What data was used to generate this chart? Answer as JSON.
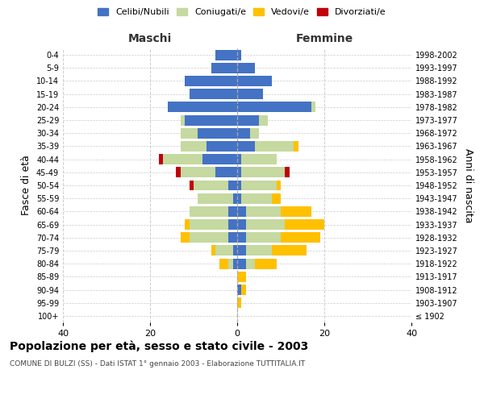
{
  "age_groups": [
    "100+",
    "95-99",
    "90-94",
    "85-89",
    "80-84",
    "75-79",
    "70-74",
    "65-69",
    "60-64",
    "55-59",
    "50-54",
    "45-49",
    "40-44",
    "35-39",
    "30-34",
    "25-29",
    "20-24",
    "15-19",
    "10-14",
    "5-9",
    "0-4"
  ],
  "birth_years": [
    "≤ 1902",
    "1903-1907",
    "1908-1912",
    "1913-1917",
    "1918-1922",
    "1923-1927",
    "1928-1932",
    "1933-1937",
    "1938-1942",
    "1943-1947",
    "1948-1952",
    "1953-1957",
    "1958-1962",
    "1963-1967",
    "1968-1972",
    "1973-1977",
    "1978-1982",
    "1983-1987",
    "1988-1992",
    "1993-1997",
    "1998-2002"
  ],
  "colors": {
    "celibi": "#4472c4",
    "coniugati": "#c5d9a0",
    "vedovi": "#ffc000",
    "divorziati": "#c0000b"
  },
  "maschi": {
    "celibi": [
      0,
      0,
      0,
      0,
      1,
      1,
      2,
      2,
      2,
      1,
      2,
      5,
      8,
      7,
      9,
      12,
      16,
      11,
      12,
      6,
      5
    ],
    "coniugati": [
      0,
      0,
      0,
      0,
      1,
      4,
      9,
      9,
      9,
      8,
      8,
      8,
      9,
      6,
      4,
      1,
      0,
      0,
      0,
      0,
      0
    ],
    "vedovi": [
      0,
      0,
      0,
      0,
      2,
      1,
      2,
      1,
      0,
      0,
      0,
      0,
      0,
      0,
      0,
      0,
      0,
      0,
      0,
      0,
      0
    ],
    "divorziati": [
      0,
      0,
      0,
      0,
      0,
      0,
      0,
      0,
      0,
      0,
      1,
      1,
      1,
      0,
      0,
      0,
      0,
      0,
      0,
      0,
      0
    ]
  },
  "femmine": {
    "celibi": [
      0,
      0,
      1,
      0,
      2,
      2,
      2,
      2,
      2,
      1,
      1,
      1,
      1,
      4,
      3,
      5,
      17,
      6,
      8,
      4,
      1
    ],
    "coniugati": [
      0,
      0,
      0,
      0,
      2,
      6,
      8,
      9,
      8,
      7,
      8,
      10,
      8,
      9,
      2,
      2,
      1,
      0,
      0,
      0,
      0
    ],
    "vedovi": [
      0,
      1,
      1,
      2,
      5,
      8,
      9,
      9,
      7,
      2,
      1,
      0,
      0,
      1,
      0,
      0,
      0,
      0,
      0,
      0,
      0
    ],
    "divorziati": [
      0,
      0,
      0,
      0,
      0,
      0,
      0,
      0,
      0,
      0,
      0,
      1,
      0,
      0,
      0,
      0,
      0,
      0,
      0,
      0,
      0
    ]
  },
  "xlim": 40,
  "title": "Popolazione per età, sesso e stato civile - 2003",
  "subtitle": "COMUNE DI BULZI (SS) - Dati ISTAT 1° gennaio 2003 - Elaborazione TUTTITALIA.IT",
  "ylabel_left": "Fasce di età",
  "ylabel_right": "Anni di nascita",
  "xlabel_left": "Maschi",
  "xlabel_right": "Femmine",
  "legend_labels": [
    "Celibi/Nubili",
    "Coniugati/e",
    "Vedovi/e",
    "Divorziati/e"
  ],
  "background_color": "#ffffff",
  "grid_color": "#cccccc"
}
